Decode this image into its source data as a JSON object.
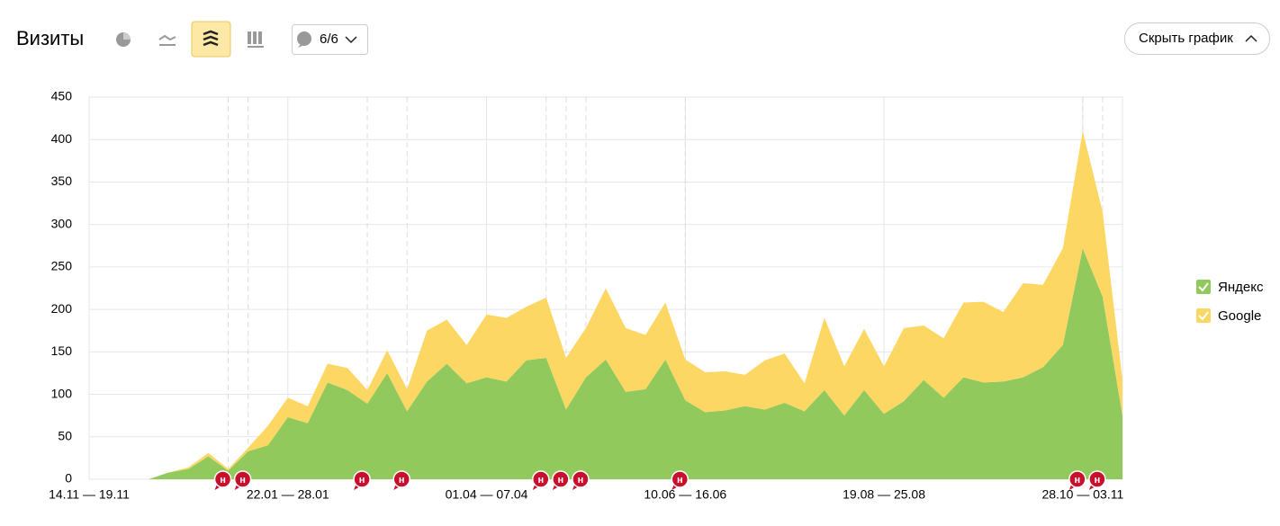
{
  "header": {
    "title": "Визиты",
    "comments_button": "6/6",
    "hide_button": "Скрыть график"
  },
  "chart_data": {
    "type": "stacked-area",
    "categories": [
      "14.11 — 19.11",
      null,
      null,
      null,
      null,
      null,
      null,
      null,
      null,
      null,
      "22.01 — 28.01",
      null,
      null,
      null,
      null,
      null,
      null,
      null,
      null,
      null,
      "01.04 — 07.04",
      null,
      null,
      null,
      null,
      null,
      null,
      null,
      null,
      null,
      "10.06 — 16.06",
      null,
      null,
      null,
      null,
      null,
      null,
      null,
      null,
      null,
      "19.08 — 25.08",
      null,
      null,
      null,
      null,
      null,
      null,
      null,
      null,
      null,
      "28.10 — 03.11",
      null,
      null
    ],
    "series": [
      {
        "name": "Яндекс",
        "color": "#92c95c",
        "values": [
          0,
          0,
          0,
          0,
          8,
          12,
          27,
          10,
          33,
          40,
          73,
          66,
          114,
          105,
          89,
          125,
          80,
          115,
          136,
          113,
          120,
          115,
          140,
          143,
          82,
          120,
          141,
          103,
          106,
          141,
          93,
          79,
          81,
          86,
          82,
          90,
          80,
          105,
          75,
          105,
          77,
          92,
          117,
          96,
          120,
          114,
          115,
          120,
          132,
          158,
          272,
          215,
          75
        ]
      },
      {
        "name": "Google",
        "color": "#fdd764",
        "values": [
          0,
          0,
          0,
          0,
          0,
          2,
          4,
          2,
          4,
          23,
          23,
          20,
          22,
          26,
          16,
          27,
          26,
          60,
          52,
          45,
          74,
          75,
          63,
          71,
          61,
          58,
          84,
          75,
          64,
          67,
          48,
          47,
          46,
          37,
          58,
          58,
          33,
          85,
          58,
          72,
          56,
          86,
          64,
          70,
          88,
          95,
          82,
          111,
          97,
          114,
          138,
          100,
          42
        ]
      }
    ],
    "ylim": [
      0,
      450
    ],
    "yticks": [
      0,
      50,
      100,
      150,
      200,
      250,
      300,
      350,
      400,
      450
    ],
    "grid": true,
    "notes": [
      {
        "x": 7,
        "label": "н"
      },
      {
        "x": 8,
        "label": "н"
      },
      {
        "x": 14,
        "label": "н"
      },
      {
        "x": 16,
        "label": "н"
      },
      {
        "x": 23,
        "label": "н"
      },
      {
        "x": 24,
        "label": "н"
      },
      {
        "x": 25,
        "label": "н"
      },
      {
        "x": 30,
        "label": "н"
      },
      {
        "x": 50,
        "label": "н"
      },
      {
        "x": 51,
        "label": "н"
      }
    ]
  }
}
